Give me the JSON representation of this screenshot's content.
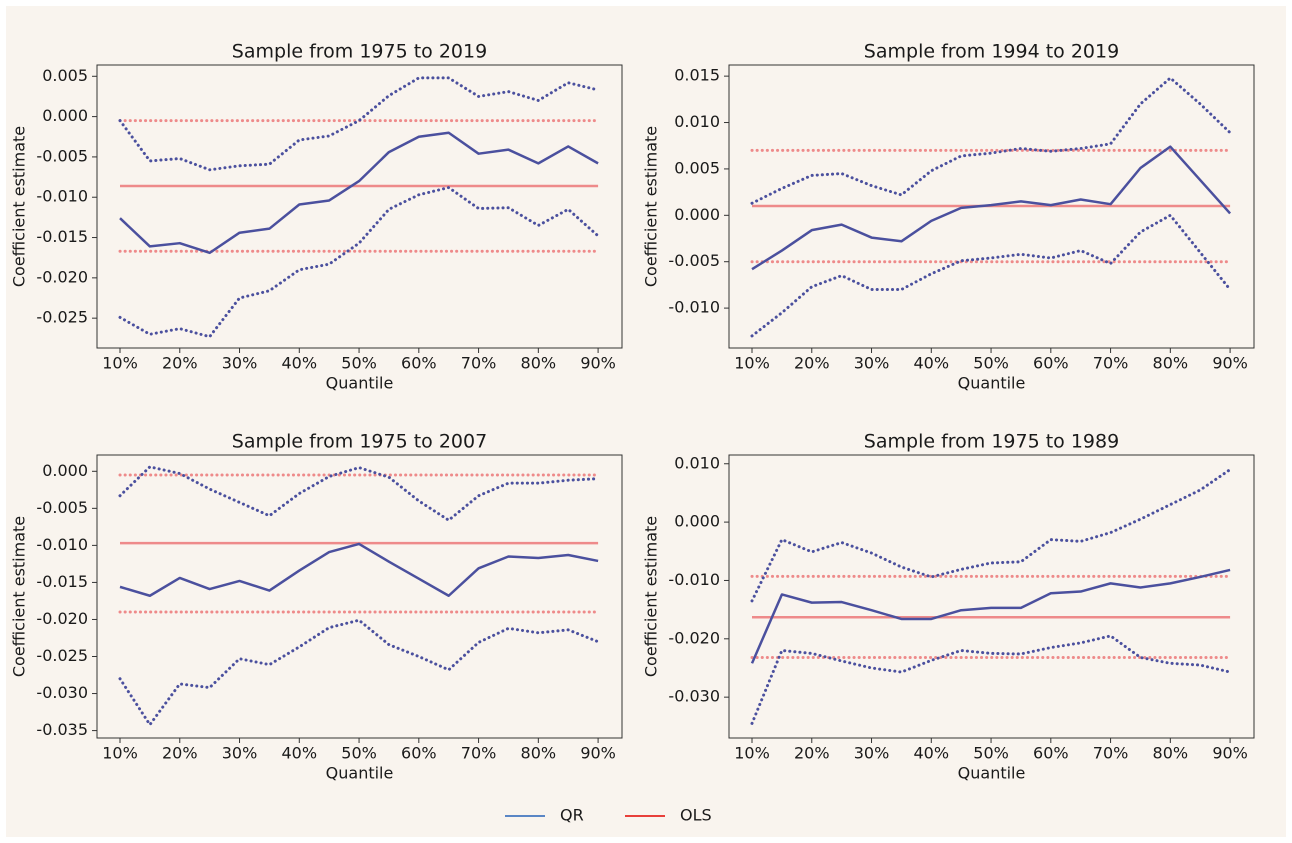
{
  "chart_data": [
    {
      "type": "line",
      "title": "Sample from 1975 to 2019",
      "xlabel": "Quantile",
      "ylabel": "Coefficient estimate",
      "x": [
        10,
        15,
        20,
        25,
        30,
        35,
        40,
        45,
        50,
        55,
        60,
        65,
        70,
        75,
        80,
        85,
        90
      ],
      "xlim": [
        6.15,
        94
      ],
      "xticks": [
        {
          "value": 10,
          "label": "10%"
        },
        {
          "value": 20,
          "label": "20%"
        },
        {
          "value": 30,
          "label": "30%"
        },
        {
          "value": 40,
          "label": "40%"
        },
        {
          "value": 50,
          "label": "50%"
        },
        {
          "value": 60,
          "label": "60%"
        },
        {
          "value": 70,
          "label": "70%"
        },
        {
          "value": 80,
          "label": "80%"
        },
        {
          "value": 90,
          "label": "90%"
        }
      ],
      "ylim": [
        -0.0287,
        0.0064
      ],
      "yticks": [
        {
          "value": -0.025,
          "label": "-0.025"
        },
        {
          "value": -0.02,
          "label": "-0.020"
        },
        {
          "value": -0.015,
          "label": "-0.015"
        },
        {
          "value": -0.01,
          "label": "-0.010"
        },
        {
          "value": -0.005,
          "label": "-0.005"
        },
        {
          "value": 0,
          "label": "0.000"
        },
        {
          "value": 0.005,
          "label": "0.005"
        }
      ],
      "series": [
        {
          "color": "#4b509e",
          "style": "solid",
          "values": [
            -0.0126,
            -0.0161,
            -0.0157,
            -0.0169,
            -0.0144,
            -0.0139,
            -0.0109,
            -0.0104,
            -0.008,
            -0.0044,
            -0.0025,
            -0.002,
            -0.0046,
            -0.0041,
            -0.0058,
            -0.0037,
            -0.0058
          ]
        },
        {
          "color": "#4b509e",
          "style": "dotted",
          "values": [
            -0.0005,
            -0.0055,
            -0.0052,
            -0.0066,
            -0.0061,
            -0.0059,
            -0.0029,
            -0.0024,
            -0.0005,
            0.0026,
            0.0048,
            0.0048,
            0.0025,
            0.0031,
            0.002,
            0.0042,
            0.0033
          ]
        },
        {
          "color": "#4b509e",
          "style": "dotted",
          "values": [
            -0.0249,
            -0.027,
            -0.0263,
            -0.0273,
            -0.0225,
            -0.0216,
            -0.019,
            -0.0183,
            -0.0157,
            -0.0115,
            -0.0097,
            -0.0088,
            -0.0114,
            -0.0113,
            -0.0135,
            -0.0115,
            -0.0148
          ]
        }
      ],
      "hlines": [
        {
          "value": -0.0086,
          "color": "#ee8a8a",
          "style": "solid"
        },
        {
          "value": -0.0005,
          "color": "#ee8a8a",
          "style": "dotted"
        },
        {
          "value": -0.0167,
          "color": "#ee8a8a",
          "style": "dotted"
        }
      ]
    },
    {
      "type": "line",
      "title": "Sample from 1994 to 2019",
      "xlabel": "Quantile",
      "ylabel": "Coefficient estimate",
      "x": [
        10,
        15,
        20,
        25,
        30,
        35,
        40,
        45,
        50,
        55,
        60,
        65,
        70,
        75,
        80,
        85,
        90
      ],
      "xlim": [
        6.15,
        94
      ],
      "xticks": [
        {
          "value": 10,
          "label": "10%"
        },
        {
          "value": 20,
          "label": "20%"
        },
        {
          "value": 30,
          "label": "30%"
        },
        {
          "value": 40,
          "label": "40%"
        },
        {
          "value": 50,
          "label": "50%"
        },
        {
          "value": 60,
          "label": "60%"
        },
        {
          "value": 70,
          "label": "70%"
        },
        {
          "value": 80,
          "label": "80%"
        },
        {
          "value": 90,
          "label": "90%"
        }
      ],
      "ylim": [
        -0.0143,
        0.0162
      ],
      "yticks": [
        {
          "value": -0.01,
          "label": "-0.010"
        },
        {
          "value": -0.005,
          "label": "-0.005"
        },
        {
          "value": 0,
          "label": "0.000"
        },
        {
          "value": 0.005,
          "label": "0.005"
        },
        {
          "value": 0.01,
          "label": "0.010"
        },
        {
          "value": 0.015,
          "label": "0.015"
        }
      ],
      "series": [
        {
          "color": "#4b509e",
          "style": "solid",
          "values": [
            -0.0058,
            -0.0038,
            -0.0016,
            -0.001,
            -0.0024,
            -0.0028,
            -0.0006,
            0.0008,
            0.0011,
            0.0015,
            0.0011,
            0.0017,
            0.0012,
            0.0051,
            0.0074,
            0.0038,
            0.0002
          ]
        },
        {
          "color": "#4b509e",
          "style": "dotted",
          "values": [
            0.0013,
            0.0029,
            0.0043,
            0.0045,
            0.0032,
            0.0022,
            0.0048,
            0.0064,
            0.0067,
            0.0072,
            0.0069,
            0.0072,
            0.0077,
            0.012,
            0.0148,
            0.012,
            0.0089
          ]
        },
        {
          "color": "#4b509e",
          "style": "dotted",
          "values": [
            -0.013,
            -0.0105,
            -0.0077,
            -0.0065,
            -0.008,
            -0.008,
            -0.0063,
            -0.0049,
            -0.0046,
            -0.0042,
            -0.0046,
            -0.0038,
            -0.0052,
            -0.0018,
            0.0,
            -0.004,
            -0.008
          ]
        }
      ],
      "hlines": [
        {
          "value": 0.001,
          "color": "#ee8a8a",
          "style": "solid"
        },
        {
          "value": 0.007,
          "color": "#ee8a8a",
          "style": "dotted"
        },
        {
          "value": -0.005,
          "color": "#ee8a8a",
          "style": "dotted"
        }
      ]
    },
    {
      "type": "line",
      "title": "Sample from 1975 to 2007",
      "xlabel": "Quantile",
      "ylabel": "Coefficient estimate",
      "x": [
        10,
        15,
        20,
        25,
        30,
        35,
        40,
        45,
        50,
        55,
        60,
        65,
        70,
        75,
        80,
        85,
        90
      ],
      "xlim": [
        6.15,
        94
      ],
      "xticks": [
        {
          "value": 10,
          "label": "10%"
        },
        {
          "value": 20,
          "label": "20%"
        },
        {
          "value": 30,
          "label": "30%"
        },
        {
          "value": 40,
          "label": "40%"
        },
        {
          "value": 50,
          "label": "50%"
        },
        {
          "value": 60,
          "label": "60%"
        },
        {
          "value": 70,
          "label": "70%"
        },
        {
          "value": 80,
          "label": "80%"
        },
        {
          "value": 90,
          "label": "90%"
        }
      ],
      "ylim": [
        -0.036,
        0.0022
      ],
      "yticks": [
        {
          "value": -0.035,
          "label": "-0.035"
        },
        {
          "value": -0.03,
          "label": "-0.030"
        },
        {
          "value": -0.025,
          "label": "-0.025"
        },
        {
          "value": -0.02,
          "label": "-0.020"
        },
        {
          "value": -0.015,
          "label": "-0.015"
        },
        {
          "value": -0.01,
          "label": "-0.010"
        },
        {
          "value": -0.005,
          "label": "-0.005"
        },
        {
          "value": 0,
          "label": "0.000"
        }
      ],
      "series": [
        {
          "color": "#4b509e",
          "style": "solid",
          "values": [
            -0.0156,
            -0.0168,
            -0.0144,
            -0.0159,
            -0.0148,
            -0.0161,
            -0.0134,
            -0.0109,
            -0.0098,
            -0.0122,
            -0.0145,
            -0.0168,
            -0.0131,
            -0.0115,
            -0.0117,
            -0.0113,
            -0.0121
          ]
        },
        {
          "color": "#4b509e",
          "style": "dotted",
          "values": [
            -0.0033,
            0.0006,
            -0.0003,
            -0.0024,
            -0.0042,
            -0.006,
            -0.003,
            -0.0007,
            0.0005,
            -0.0008,
            -0.004,
            -0.0066,
            -0.0033,
            -0.0016,
            -0.0016,
            -0.0012,
            -0.001
          ]
        },
        {
          "color": "#4b509e",
          "style": "dotted",
          "values": [
            -0.028,
            -0.0342,
            -0.0287,
            -0.0292,
            -0.0253,
            -0.0261,
            -0.0237,
            -0.0211,
            -0.0201,
            -0.0234,
            -0.025,
            -0.0268,
            -0.0231,
            -0.0212,
            -0.0218,
            -0.0214,
            -0.023
          ]
        }
      ],
      "hlines": [
        {
          "value": -0.0097,
          "color": "#ee8a8a",
          "style": "solid"
        },
        {
          "value": -0.0005,
          "color": "#ee8a8a",
          "style": "dotted"
        },
        {
          "value": -0.019,
          "color": "#ee8a8a",
          "style": "dotted"
        }
      ]
    },
    {
      "type": "line",
      "title": "Sample from 1975 to 1989",
      "xlabel": "Quantile",
      "ylabel": "Coefficient estimate",
      "x": [
        10,
        15,
        20,
        25,
        30,
        35,
        40,
        45,
        50,
        55,
        60,
        65,
        70,
        75,
        80,
        85,
        90
      ],
      "xlim": [
        6.15,
        94
      ],
      "xticks": [
        {
          "value": 10,
          "label": "10%"
        },
        {
          "value": 20,
          "label": "20%"
        },
        {
          "value": 30,
          "label": "30%"
        },
        {
          "value": 40,
          "label": "40%"
        },
        {
          "value": 50,
          "label": "50%"
        },
        {
          "value": 60,
          "label": "60%"
        },
        {
          "value": 70,
          "label": "70%"
        },
        {
          "value": 80,
          "label": "80%"
        },
        {
          "value": 90,
          "label": "90%"
        }
      ],
      "ylim": [
        -0.037,
        0.0115
      ],
      "yticks": [
        {
          "value": -0.03,
          "label": "-0.030"
        },
        {
          "value": -0.02,
          "label": "-0.020"
        },
        {
          "value": -0.01,
          "label": "-0.010"
        },
        {
          "value": 0,
          "label": "0.000"
        },
        {
          "value": 0.01,
          "label": "0.010"
        }
      ],
      "series": [
        {
          "color": "#4b509e",
          "style": "solid",
          "values": [
            -0.0242,
            -0.0124,
            -0.0138,
            -0.0137,
            -0.0151,
            -0.0166,
            -0.0166,
            -0.0151,
            -0.0147,
            -0.0147,
            -0.0122,
            -0.0119,
            -0.0105,
            -0.0112,
            -0.0105,
            -0.0094,
            -0.0082
          ]
        },
        {
          "color": "#4b509e",
          "style": "dotted",
          "values": [
            -0.0135,
            -0.003,
            -0.0051,
            -0.0035,
            -0.0053,
            -0.0077,
            -0.0094,
            -0.0081,
            -0.007,
            -0.0068,
            -0.003,
            -0.0033,
            -0.0018,
            0.0005,
            0.003,
            0.0055,
            0.009
          ]
        },
        {
          "color": "#4b509e",
          "style": "dotted",
          "values": [
            -0.0345,
            -0.022,
            -0.0225,
            -0.0238,
            -0.025,
            -0.0257,
            -0.0237,
            -0.022,
            -0.0225,
            -0.0226,
            -0.0215,
            -0.0207,
            -0.0195,
            -0.0232,
            -0.0242,
            -0.0245,
            -0.0257
          ]
        }
      ],
      "hlines": [
        {
          "value": -0.0163,
          "color": "#ee8a8a",
          "style": "solid"
        },
        {
          "value": -0.0093,
          "color": "#ee8a8a",
          "style": "dotted"
        },
        {
          "value": -0.0232,
          "color": "#ee8a8a",
          "style": "dotted"
        }
      ]
    }
  ],
  "legend": [
    {
      "label": "QR",
      "color": "#5a86c5"
    },
    {
      "label": "OLS",
      "color": "#e8403a"
    }
  ]
}
